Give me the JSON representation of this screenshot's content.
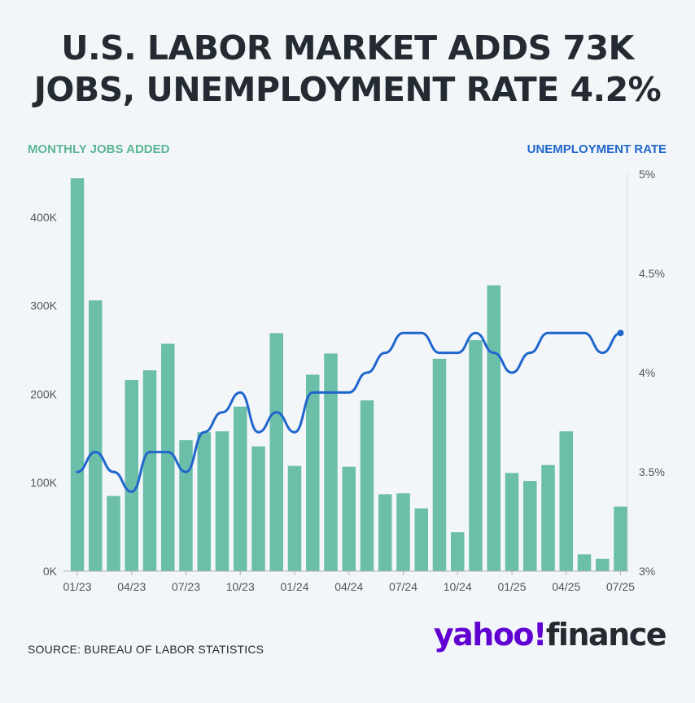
{
  "title": {
    "line1": "U.S. LABOR MARKET ADDS 73K",
    "line2": "JOBS, UNEMPLOYMENT RATE 4.2%"
  },
  "labels": {
    "left_series": "MONTHLY JOBS ADDED",
    "right_series": "UNEMPLOYMENT RATE"
  },
  "source": "SOURCE: BUREAU OF LABOR STATISTICS",
  "logo": {
    "brand": "yahoo",
    "mark": "!",
    "product": "finance"
  },
  "colors": {
    "bars": "#6bbea8",
    "line": "#1f66cc",
    "left_label": "#5bb596",
    "right_label": "#1f66cc",
    "axis_text": "#555555",
    "yahoo_purple": "#6001d2"
  },
  "chart_data": {
    "type": "bar",
    "x_tick_labels": [
      "01/23",
      "04/23",
      "07/23",
      "10/23",
      "01/24",
      "04/24",
      "07/24",
      "10/24",
      "01/25",
      "04/25",
      "07/25"
    ],
    "x_tick_every": 3,
    "months": [
      "01/23",
      "02/23",
      "03/23",
      "04/23",
      "05/23",
      "06/23",
      "07/23",
      "08/23",
      "09/23",
      "10/23",
      "11/23",
      "12/23",
      "01/24",
      "02/24",
      "03/24",
      "04/24",
      "05/24",
      "06/24",
      "07/24",
      "08/24",
      "09/24",
      "10/24",
      "11/24",
      "12/24",
      "01/25",
      "02/25",
      "03/25",
      "04/25",
      "05/25",
      "06/25",
      "07/25"
    ],
    "series": [
      {
        "name": "MONTHLY JOBS ADDED",
        "axis": "left",
        "kind": "bar",
        "values": [
          444000,
          306000,
          85000,
          216000,
          227000,
          257000,
          148000,
          157000,
          158000,
          186000,
          141000,
          269000,
          119000,
          222000,
          246000,
          118000,
          193000,
          87000,
          88000,
          71000,
          240000,
          44000,
          261000,
          323000,
          111000,
          102000,
          120000,
          158000,
          19000,
          14000,
          73000
        ]
      },
      {
        "name": "UNEMPLOYMENT RATE",
        "axis": "right",
        "kind": "line",
        "values": [
          3.5,
          3.6,
          3.5,
          3.4,
          3.6,
          3.6,
          3.5,
          3.7,
          3.8,
          3.9,
          3.7,
          3.8,
          3.7,
          3.9,
          3.9,
          3.9,
          4.0,
          4.1,
          4.2,
          4.2,
          4.1,
          4.1,
          4.2,
          4.1,
          4.0,
          4.1,
          4.2,
          4.2,
          4.2,
          4.1,
          4.2
        ]
      }
    ],
    "left_axis": {
      "ylim": [
        0,
        445000
      ],
      "ticks": [
        0,
        100000,
        200000,
        300000,
        400000
      ],
      "tick_labels": [
        "0K",
        "100K",
        "200K",
        "300K",
        "400K"
      ]
    },
    "right_axis": {
      "ylim": [
        3,
        5
      ],
      "ticks": [
        3,
        3.5,
        4,
        4.5,
        5
      ],
      "tick_labels": [
        "3%",
        "3.5%",
        "4%",
        "4.5%",
        "5%"
      ]
    },
    "grid": false,
    "legend": "none"
  }
}
